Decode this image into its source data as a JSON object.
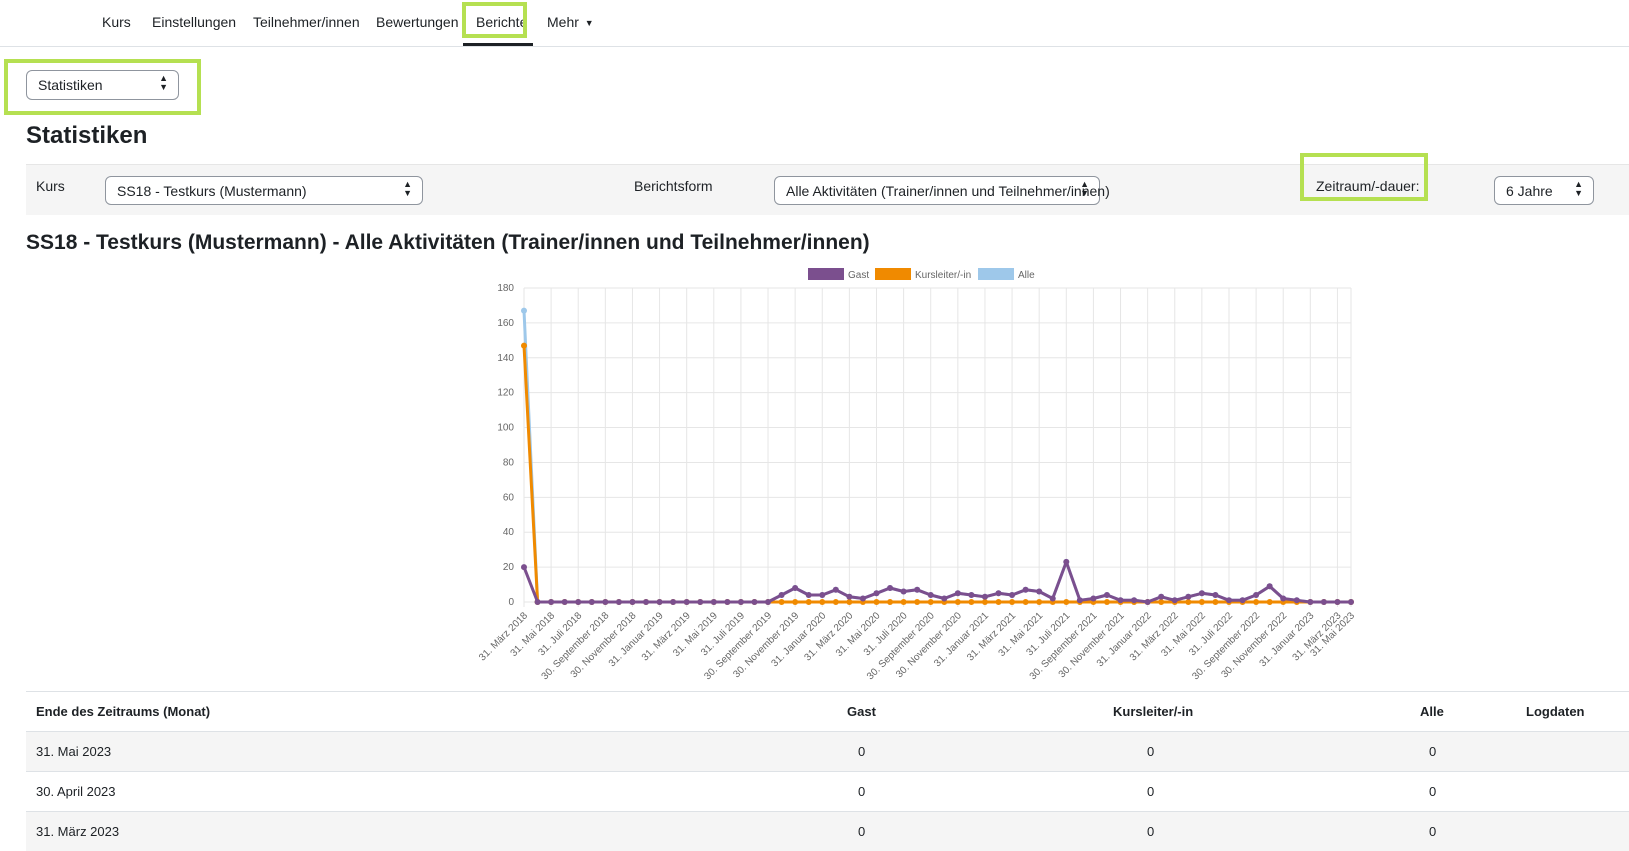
{
  "nav": {
    "items": [
      "Kurs",
      "Einstellungen",
      "Teilnehmer/innen",
      "Bewertungen",
      "Berichte"
    ],
    "more_label": "Mehr",
    "active": "Berichte"
  },
  "report_select": {
    "value": "Statistiken"
  },
  "page_title": "Statistiken",
  "filters": {
    "course_label": "Kurs",
    "course_value": "SS18 - Testkurs (Mustermann)",
    "report_label": "Berichtsform",
    "report_value": "Alle Aktivitäten (Trainer/innen und Teilnehmer/innen)",
    "period_label": "Zeitraum/-dauer:",
    "period_value": "6 Jahre"
  },
  "report_heading": "SS18 - Testkurs (Mustermann) - Alle Aktivitäten (Trainer/innen und Teilnehmer/innen)",
  "colors": {
    "highlight": "#b5e051",
    "gast": "#7b4f8e",
    "kursleiter": "#f08a00",
    "alle": "#9ec8ea"
  },
  "chart_data": {
    "type": "line",
    "legend": [
      "Gast",
      "Kursleiter/-in",
      "Alle"
    ],
    "legend_position": "top",
    "ylim": [
      0,
      180
    ],
    "yticks": [
      0,
      20,
      40,
      60,
      80,
      100,
      120,
      140,
      160,
      180
    ],
    "grid": true,
    "x_labels_shown": [
      "31. März 2018",
      "31. Mai 2018",
      "31. Juli 2018",
      "30. September 2018",
      "30. November 2018",
      "31. Januar 2019",
      "31. März 2019",
      "31. Mai 2019",
      "31. Juli 2019",
      "30. September 2019",
      "30. November 2019",
      "31. Januar 2020",
      "31. März 2020",
      "31. Mai 2020",
      "31. Juli 2020",
      "30. September 2020",
      "30. November 2020",
      "31. Januar 2021",
      "31. März 2021",
      "31. Mai 2021",
      "31. Juli 2021",
      "30. September 2021",
      "30. November 2021",
      "31. Januar 2022",
      "31. März 2022",
      "31. Mai 2022",
      "31. Juli 2022",
      "30. September 2022",
      "30. November 2022",
      "31. Januar 2023",
      "31. März 2023",
      "31. Mai 2023"
    ],
    "series": [
      {
        "name": "Gast",
        "values": [
          20,
          0,
          0,
          0,
          0,
          0,
          0,
          0,
          0,
          0,
          0,
          0,
          0,
          0,
          0,
          0,
          0,
          0,
          0,
          4,
          8,
          4,
          4,
          7,
          3,
          2,
          5,
          8,
          6,
          7,
          4,
          2,
          5,
          4,
          3,
          5,
          4,
          7,
          6,
          2,
          23,
          1,
          2,
          4,
          1,
          1,
          0,
          3,
          1,
          3,
          5,
          4,
          1,
          1,
          4,
          9,
          2,
          1,
          0,
          0,
          0,
          0
        ]
      },
      {
        "name": "Kursleiter/-in",
        "values": [
          147,
          0,
          0,
          0,
          0,
          0,
          0,
          0,
          0,
          0,
          0,
          0,
          0,
          0,
          0,
          0,
          0,
          0,
          0,
          0,
          0,
          0,
          0,
          0,
          0,
          0,
          0,
          0,
          0,
          0,
          0,
          0,
          0,
          0,
          0,
          0,
          0,
          0,
          0,
          0,
          0,
          0,
          0,
          0,
          0,
          0,
          0,
          0,
          0,
          0,
          0,
          0,
          0,
          0,
          0,
          0,
          0,
          0,
          0,
          0,
          0,
          0
        ]
      },
      {
        "name": "Alle",
        "values": [
          167,
          0,
          0,
          0,
          0,
          0,
          0,
          0,
          0,
          0,
          0,
          0,
          0,
          0,
          0,
          0,
          0,
          0,
          0,
          4,
          8,
          4,
          4,
          7,
          3,
          2,
          5,
          8,
          6,
          7,
          4,
          2,
          5,
          4,
          3,
          5,
          4,
          7,
          6,
          2,
          23,
          1,
          2,
          4,
          1,
          1,
          0,
          3,
          1,
          3,
          5,
          4,
          1,
          1,
          4,
          9,
          2,
          1,
          0,
          0,
          0,
          0
        ]
      }
    ]
  },
  "table": {
    "headers": [
      "Ende des Zeitraums (Monat)",
      "Gast",
      "Kursleiter/-in",
      "Alle",
      "Logdaten"
    ],
    "rows": [
      [
        "31. Mai 2023",
        "0",
        "0",
        "0"
      ],
      [
        "30. April 2023",
        "0",
        "0",
        "0"
      ],
      [
        "31. März 2023",
        "0",
        "0",
        "0"
      ]
    ]
  }
}
